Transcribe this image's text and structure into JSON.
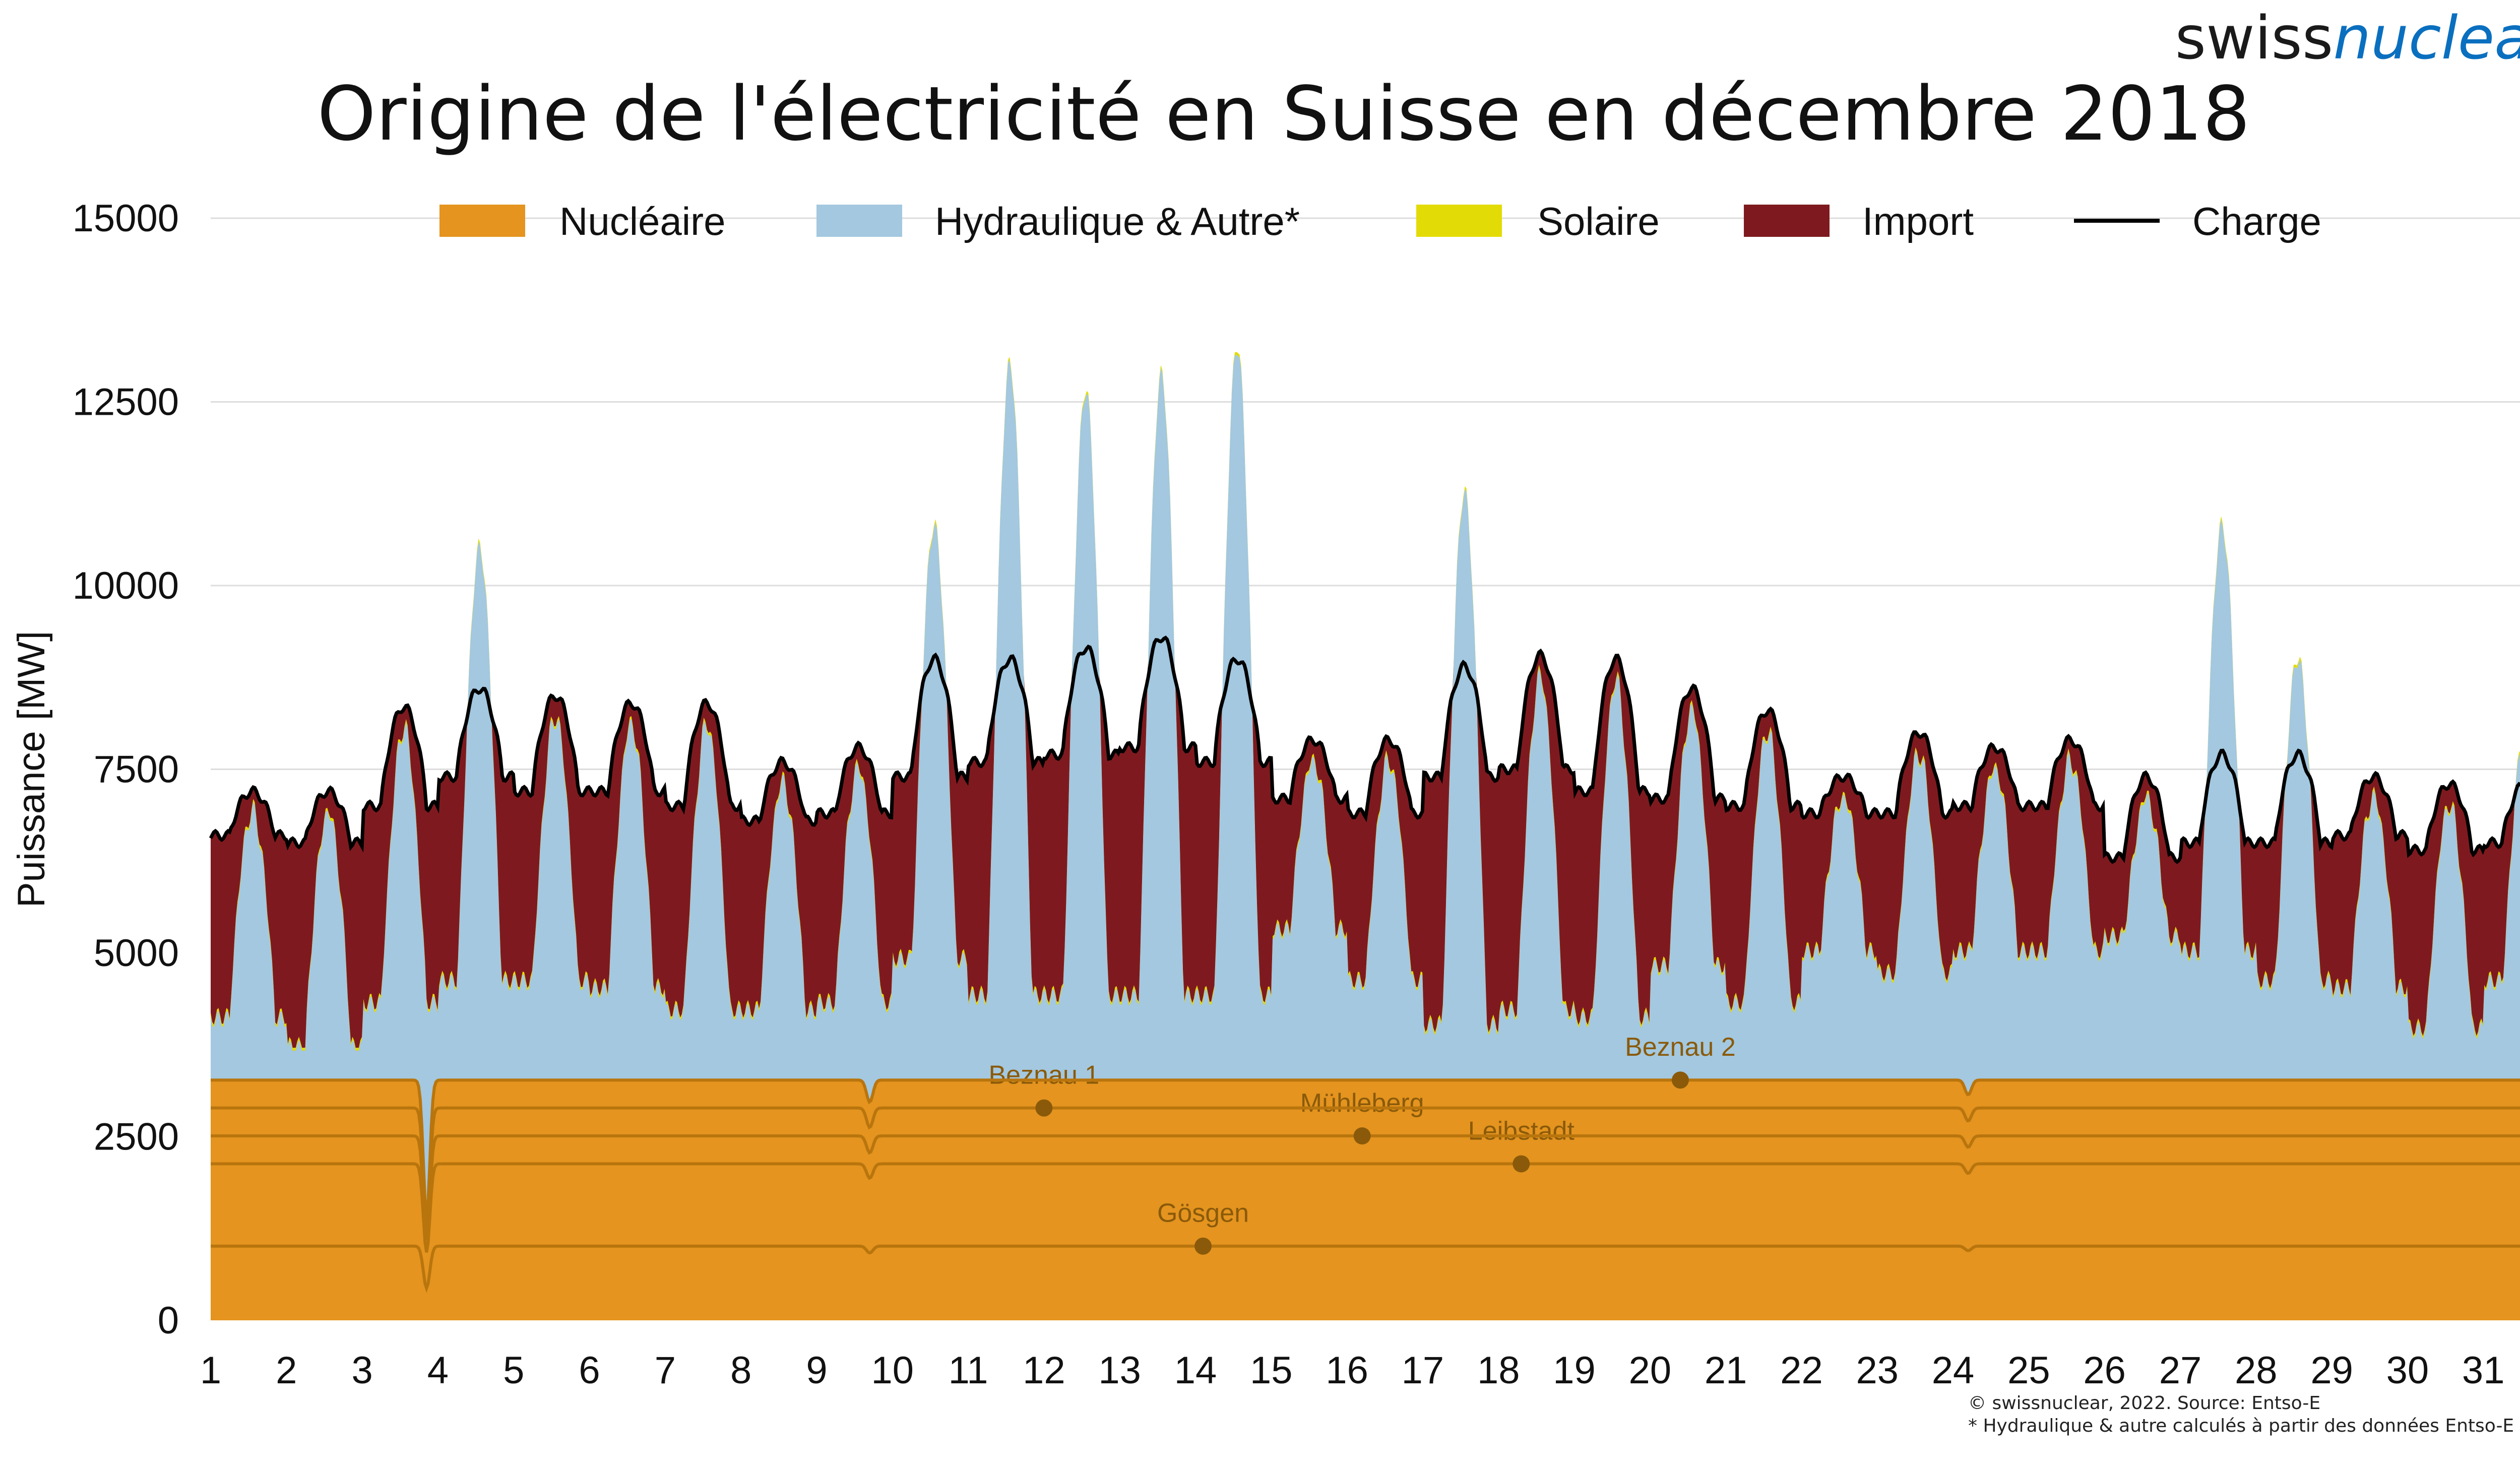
{
  "brand": {
    "part1": "swiss",
    "part2": "nuclear"
  },
  "title": "Origine de l'électricité en Suisse en décembre 2018",
  "footnote": {
    "line1": "© swissnuclear, 2022. Source: Entso-E",
    "line2": "* Hydraulique & autre calculés à partir des données Entso-E"
  },
  "colors": {
    "nuclear": "#E4941F",
    "nuclear_edge": "#B9750D",
    "hydro": "#A3C8E0",
    "solar": "#E3DB05",
    "import": "#7E1A1F",
    "load": "#000000",
    "grid": "#DDDDDD",
    "plant_label": "#8A5A0A"
  },
  "chart_data": {
    "type": "area",
    "title": "Origine de l'électricité en Suisse en décembre 2018",
    "xlabel": "",
    "ylabel": "Puissance [MW]",
    "ylim": [
      0,
      15000
    ],
    "yticks": [
      0,
      2500,
      5000,
      7500,
      10000,
      12500,
      15000
    ],
    "xlim": [
      1,
      31.95
    ],
    "xticks": [
      1,
      2,
      3,
      4,
      5,
      6,
      7,
      8,
      9,
      10,
      11,
      12,
      13,
      14,
      15,
      16,
      17,
      18,
      19,
      20,
      21,
      22,
      23,
      24,
      25,
      26,
      27,
      28,
      29,
      30,
      31
    ],
    "grid": "horizontal",
    "legend": {
      "position": "top",
      "entries": [
        "Nucléaire",
        "Hydraulique & Autre*",
        "Solaire",
        "Import",
        "Charge"
      ]
    },
    "nuclear_plants": [
      {
        "name": "Gösgen",
        "capacity_mw": 1010,
        "label_day": 14.1
      },
      {
        "name": "Leibstadt",
        "capacity_mw": 1120,
        "label_day": 18.3
      },
      {
        "name": "Mühleberg",
        "capacity_mw": 380,
        "label_day": 16.2
      },
      {
        "name": "Beznau 1",
        "capacity_mw": 380,
        "label_day": 12.0
      },
      {
        "name": "Beznau 2",
        "capacity_mw": 380,
        "label_day": 20.4
      }
    ],
    "nuclear_total_mw": 3270,
    "nuclear_outages": [
      {
        "plant": "Leibstadt",
        "day": 3.85,
        "depth_mw": 1000
      },
      {
        "plant": "Gösgen",
        "day": 3.85,
        "depth_mw": 850
      },
      {
        "plant": "Beznau 1",
        "day": 9.7,
        "depth_mw": 300
      },
      {
        "plant": "Beznau 2",
        "day": 24.2,
        "depth_mw": 200
      }
    ],
    "daily_load_mw": [
      {
        "day": 1,
        "peak": 7200,
        "trough": 6600
      },
      {
        "day": 2,
        "peak": 7200,
        "trough": 6500
      },
      {
        "day": 3,
        "peak": 8350,
        "trough": 7000
      },
      {
        "day": 4,
        "peak": 8600,
        "trough": 7400
      },
      {
        "day": 5,
        "peak": 8500,
        "trough": 7200
      },
      {
        "day": 6,
        "peak": 8400,
        "trough": 7200
      },
      {
        "day": 7,
        "peak": 8400,
        "trough": 7000
      },
      {
        "day": 8,
        "peak": 7600,
        "trough": 6800
      },
      {
        "day": 9,
        "peak": 7800,
        "trough": 6900
      },
      {
        "day": 10,
        "peak": 9000,
        "trough": 7400
      },
      {
        "day": 11,
        "peak": 9000,
        "trough": 7600
      },
      {
        "day": 12,
        "peak": 9150,
        "trough": 7700
      },
      {
        "day": 13,
        "peak": 9300,
        "trough": 7800
      },
      {
        "day": 14,
        "peak": 9000,
        "trough": 7600
      },
      {
        "day": 15,
        "peak": 7900,
        "trough": 7100
      },
      {
        "day": 16,
        "peak": 7900,
        "trough": 6900
      },
      {
        "day": 17,
        "peak": 8900,
        "trough": 7400
      },
      {
        "day": 18,
        "peak": 9050,
        "trough": 7500
      },
      {
        "day": 19,
        "peak": 9000,
        "trough": 7200
      },
      {
        "day": 20,
        "peak": 8600,
        "trough": 7100
      },
      {
        "day": 21,
        "peak": 8300,
        "trough": 7000
      },
      {
        "day": 22,
        "peak": 7400,
        "trough": 6900
      },
      {
        "day": 23,
        "peak": 8000,
        "trough": 6900
      },
      {
        "day": 24,
        "peak": 7800,
        "trough": 7000
      },
      {
        "day": 25,
        "peak": 7900,
        "trough": 7000
      },
      {
        "day": 26,
        "peak": 7400,
        "trough": 6300
      },
      {
        "day": 27,
        "peak": 7700,
        "trough": 6500
      },
      {
        "day": 28,
        "peak": 7700,
        "trough": 6500
      },
      {
        "day": 29,
        "peak": 7400,
        "trough": 6600
      },
      {
        "day": 30,
        "peak": 7300,
        "trough": 6400
      },
      {
        "day": 31,
        "peak": 7300,
        "trough": 6500
      }
    ],
    "daily_hydro_peak_total_mw": [
      {
        "day": 4,
        "value": 10500
      },
      {
        "day": 10,
        "value": 10800
      },
      {
        "day": 11,
        "value": 13000
      },
      {
        "day": 12,
        "value": 12650
      },
      {
        "day": 13,
        "value": 12850
      },
      {
        "day": 14,
        "value": 13250
      },
      {
        "day": 17,
        "value": 11250
      },
      {
        "day": 27,
        "value": 10800
      },
      {
        "day": 28,
        "value": 9000
      },
      {
        "day": 31,
        "value": 8000
      }
    ],
    "daily_hydro_trough_total_mw": [
      {
        "day": 1,
        "value": 4100
      },
      {
        "day": 2,
        "value": 3700
      },
      {
        "day": 3,
        "value": 4300
      },
      {
        "day": 4,
        "value": 4600
      },
      {
        "day": 5,
        "value": 4600
      },
      {
        "day": 6,
        "value": 4500
      },
      {
        "day": 7,
        "value": 4200
      },
      {
        "day": 8,
        "value": 4200
      },
      {
        "day": 9,
        "value": 4300
      },
      {
        "day": 10,
        "value": 4900
      },
      {
        "day": 11,
        "value": 4400
      },
      {
        "day": 12,
        "value": 4400
      },
      {
        "day": 13,
        "value": 4400
      },
      {
        "day": 14,
        "value": 4400
      },
      {
        "day": 15,
        "value": 5300
      },
      {
        "day": 16,
        "value": 4600
      },
      {
        "day": 17,
        "value": 4000
      },
      {
        "day": 18,
        "value": 4200
      },
      {
        "day": 19,
        "value": 4100
      },
      {
        "day": 20,
        "value": 4800
      },
      {
        "day": 21,
        "value": 4300
      },
      {
        "day": 22,
        "value": 5000
      },
      {
        "day": 23,
        "value": 4700
      },
      {
        "day": 24,
        "value": 5000
      },
      {
        "day": 25,
        "value": 5000
      },
      {
        "day": 26,
        "value": 5200
      },
      {
        "day": 27,
        "value": 5000
      },
      {
        "day": 28,
        "value": 4600
      },
      {
        "day": 29,
        "value": 4500
      },
      {
        "day": 30,
        "value": 3950
      },
      {
        "day": 31,
        "value": 4600
      }
    ]
  }
}
